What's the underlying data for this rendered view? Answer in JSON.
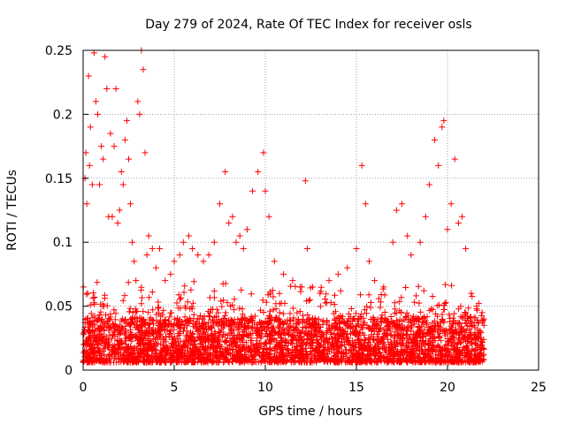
{
  "chart_data": {
    "type": "scatter",
    "title": "Day 279 of 2024, Rate Of TEC Index for receiver osls",
    "xlabel": "GPS time / hours",
    "ylabel": "ROTI / TECUs",
    "xlim": [
      0,
      25
    ],
    "ylim": [
      0,
      0.25
    ],
    "xticks": [
      "0",
      "5",
      "10",
      "15",
      "20",
      "25"
    ],
    "yticks": [
      "0",
      "0.05",
      "0.1",
      "0.15",
      "0.2",
      "0.25"
    ],
    "grid": true,
    "marker": "+",
    "series_color": "#ff0000",
    "series": [
      {
        "points": [
          [
            0.05,
            0.02
          ],
          [
            0.1,
            0.15
          ],
          [
            0.15,
            0.17
          ],
          [
            0.2,
            0.13
          ],
          [
            0.25,
            0.06
          ],
          [
            0.3,
            0.23
          ],
          [
            0.35,
            0.16
          ],
          [
            0.4,
            0.19
          ],
          [
            0.5,
            0.145
          ],
          [
            0.6,
            0.248
          ],
          [
            0.7,
            0.21
          ],
          [
            0.8,
            0.2
          ],
          [
            0.9,
            0.145
          ],
          [
            1.0,
            0.175
          ],
          [
            1.1,
            0.165
          ],
          [
            1.2,
            0.245
          ],
          [
            1.3,
            0.22
          ],
          [
            1.4,
            0.12
          ],
          [
            1.5,
            0.185
          ],
          [
            1.6,
            0.12
          ],
          [
            1.7,
            0.175
          ],
          [
            1.8,
            0.22
          ],
          [
            1.9,
            0.115
          ],
          [
            2.0,
            0.125
          ],
          [
            2.1,
            0.155
          ],
          [
            2.2,
            0.145
          ],
          [
            2.3,
            0.18
          ],
          [
            2.4,
            0.195
          ],
          [
            2.5,
            0.165
          ],
          [
            2.6,
            0.13
          ],
          [
            2.7,
            0.1
          ],
          [
            2.8,
            0.085
          ],
          [
            2.9,
            0.07
          ],
          [
            3.0,
            0.21
          ],
          [
            3.1,
            0.2
          ],
          [
            3.2,
            0.25
          ],
          [
            3.3,
            0.235
          ],
          [
            3.4,
            0.17
          ],
          [
            3.5,
            0.09
          ],
          [
            3.6,
            0.105
          ],
          [
            3.8,
            0.095
          ],
          [
            4.0,
            0.08
          ],
          [
            4.2,
            0.095
          ],
          [
            4.5,
            0.07
          ],
          [
            4.8,
            0.075
          ],
          [
            5.0,
            0.085
          ],
          [
            5.3,
            0.09
          ],
          [
            5.5,
            0.1
          ],
          [
            5.8,
            0.105
          ],
          [
            6.0,
            0.095
          ],
          [
            6.3,
            0.09
          ],
          [
            6.6,
            0.085
          ],
          [
            6.9,
            0.09
          ],
          [
            7.2,
            0.1
          ],
          [
            7.5,
            0.13
          ],
          [
            7.8,
            0.155
          ],
          [
            8.0,
            0.115
          ],
          [
            8.2,
            0.12
          ],
          [
            8.4,
            0.1
          ],
          [
            8.6,
            0.105
          ],
          [
            8.8,
            0.095
          ],
          [
            9.0,
            0.11
          ],
          [
            9.3,
            0.14
          ],
          [
            9.6,
            0.155
          ],
          [
            9.9,
            0.17
          ],
          [
            10.0,
            0.14
          ],
          [
            10.2,
            0.12
          ],
          [
            10.5,
            0.085
          ],
          [
            11.0,
            0.075
          ],
          [
            11.5,
            0.07
          ],
          [
            12.0,
            0.065
          ],
          [
            12.2,
            0.148
          ],
          [
            12.3,
            0.095
          ],
          [
            12.6,
            0.065
          ],
          [
            13.0,
            0.06
          ],
          [
            13.5,
            0.07
          ],
          [
            14.0,
            0.075
          ],
          [
            14.5,
            0.08
          ],
          [
            15.0,
            0.095
          ],
          [
            15.3,
            0.16
          ],
          [
            15.5,
            0.13
          ],
          [
            15.7,
            0.085
          ],
          [
            16.0,
            0.07
          ],
          [
            16.5,
            0.065
          ],
          [
            17.0,
            0.1
          ],
          [
            17.2,
            0.125
          ],
          [
            17.5,
            0.13
          ],
          [
            17.8,
            0.105
          ],
          [
            18.0,
            0.09
          ],
          [
            18.5,
            0.1
          ],
          [
            18.8,
            0.12
          ],
          [
            19.0,
            0.145
          ],
          [
            19.3,
            0.18
          ],
          [
            19.5,
            0.16
          ],
          [
            19.7,
            0.19
          ],
          [
            19.8,
            0.195
          ],
          [
            20.0,
            0.11
          ],
          [
            20.2,
            0.13
          ],
          [
            20.4,
            0.165
          ],
          [
            20.6,
            0.115
          ],
          [
            20.8,
            0.12
          ],
          [
            21.0,
            0.095
          ],
          [
            21.3,
            0.06
          ],
          [
            21.6,
            0.05
          ],
          [
            21.9,
            0.045
          ],
          [
            22.0,
            0.04
          ]
        ]
      }
    ]
  }
}
